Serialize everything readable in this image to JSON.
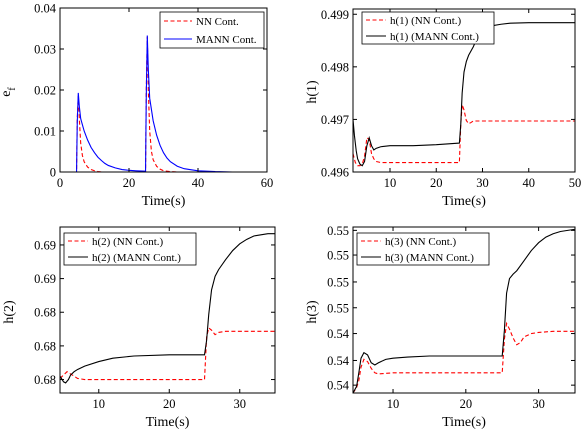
{
  "figure": {
    "layout": "2x2 grid"
  },
  "colors": {
    "nn": "#ff0000",
    "mann_ef": "#0000ff",
    "mann_h": "#000000",
    "axes": "#000000",
    "background": "#ffffff"
  },
  "chart_data": [
    {
      "type": "line",
      "title": "",
      "xlabel": "Time(s)",
      "ylabel": "e_f",
      "xlim": [
        0,
        60
      ],
      "ylim": [
        0,
        0.04
      ],
      "xticks": [
        0,
        20,
        40,
        60
      ],
      "xtick_labels": [
        "0",
        "20",
        "40",
        "60"
      ],
      "yticks": [
        0,
        0.01,
        0.02,
        0.03,
        0.04
      ],
      "ytick_labels": [
        "0",
        "0.01",
        "0.02",
        "0.03",
        "0.04"
      ],
      "grid": false,
      "legend": {
        "position": "top-right",
        "entries": [
          "NN Cont.",
          "MANN Cont."
        ]
      },
      "series": [
        {
          "name": "NN Cont.",
          "color": "#ff0000",
          "style": "dashed",
          "x": [
            0,
            4.8,
            5.0,
            5.3,
            5.6,
            6,
            6.5,
            7,
            8,
            9,
            10,
            11,
            12,
            14,
            24.8,
            25.0,
            25.3,
            25.6,
            26,
            26.5,
            27,
            28,
            29,
            30,
            32,
            34,
            50
          ],
          "y": [
            0,
            0,
            0.013,
            0.0185,
            0.013,
            0.007,
            0.004,
            0.0025,
            0.0012,
            0.0006,
            0.0003,
            0.0001,
            0,
            0,
            0,
            0.02,
            0.033,
            0.02,
            0.01,
            0.005,
            0.003,
            0.0014,
            0.0007,
            0.0003,
            0.0001,
            0,
            0
          ]
        },
        {
          "name": "MANN Cont.",
          "color": "#0000ff",
          "style": "solid",
          "x": [
            0,
            4.8,
            5.0,
            5.3,
            5.6,
            6,
            7,
            8,
            9,
            10,
            11,
            12,
            13,
            14,
            16,
            18,
            20,
            22,
            24.8,
            25.0,
            25.3,
            25.6,
            26,
            27,
            28,
            29,
            30,
            31,
            32,
            34,
            36,
            40,
            45,
            50
          ],
          "y": [
            0,
            0,
            0.012,
            0.0193,
            0.016,
            0.013,
            0.01,
            0.0078,
            0.006,
            0.0047,
            0.0036,
            0.0028,
            0.0021,
            0.0016,
            0.001,
            0.0006,
            0.0004,
            0.0003,
            0.0002,
            0.018,
            0.0333,
            0.025,
            0.018,
            0.0125,
            0.009,
            0.0065,
            0.0047,
            0.0034,
            0.0025,
            0.0014,
            0.0008,
            0.0003,
            0.0001,
            0
          ]
        }
      ]
    },
    {
      "type": "line",
      "title": "",
      "xlabel": "Time(s)",
      "ylabel": "h(1)",
      "xlim": [
        2,
        50
      ],
      "ylim": [
        0.496,
        0.4991
      ],
      "xticks": [
        10,
        20,
        30,
        40,
        50
      ],
      "xtick_labels": [
        "10",
        "20",
        "30",
        "40",
        "50"
      ],
      "yticks": [
        0.496,
        0.497,
        0.498,
        0.499
      ],
      "ytick_labels": [
        "0.496",
        "0.497",
        "0.498",
        "0.499"
      ],
      "grid": false,
      "legend": {
        "position": "top-left",
        "entries": [
          "h(1) (NN Cont.)",
          "h(1) (MANN Cont.)"
        ]
      },
      "series": [
        {
          "name": "h(1) (NN Cont.)",
          "color": "#ff0000",
          "style": "dashed",
          "x": [
            2,
            2.5,
            3,
            3.5,
            4,
            4.5,
            5,
            5.5,
            6,
            6.5,
            7,
            8,
            10,
            15,
            20,
            25,
            25.3,
            25.6,
            26,
            26.5,
            27,
            27.5,
            28,
            29,
            30,
            35,
            40,
            50
          ],
          "y": [
            0.49635,
            0.49618,
            0.49612,
            0.49612,
            0.49615,
            0.4963,
            0.49665,
            0.49662,
            0.49635,
            0.49625,
            0.4962,
            0.49618,
            0.49618,
            0.49618,
            0.49618,
            0.49618,
            0.4969,
            0.49728,
            0.49718,
            0.49698,
            0.49692,
            0.49694,
            0.49697,
            0.49697,
            0.49697,
            0.49697,
            0.49697,
            0.49697
          ]
        },
        {
          "name": "h(1) (MANN Cont.)",
          "color": "#000000",
          "style": "solid",
          "x": [
            2,
            2.3,
            2.7,
            3,
            3.5,
            4,
            4.5,
            5,
            5.5,
            6,
            6.5,
            7,
            8,
            10,
            15,
            20,
            25,
            25.3,
            25.6,
            26,
            26.5,
            27,
            28,
            29,
            30,
            31,
            32,
            34,
            36,
            40,
            45,
            50
          ],
          "y": [
            0.497,
            0.4967,
            0.4964,
            0.49625,
            0.49615,
            0.49612,
            0.4962,
            0.4965,
            0.49665,
            0.4965,
            0.49642,
            0.49645,
            0.49648,
            0.4965,
            0.4965,
            0.49652,
            0.49655,
            0.4969,
            0.4975,
            0.4979,
            0.4981,
            0.49822,
            0.49838,
            0.49858,
            0.49868,
            0.49875,
            0.49878,
            0.49881,
            0.49883,
            0.49884,
            0.49884,
            0.49884
          ]
        }
      ]
    },
    {
      "type": "line",
      "title": "",
      "xlabel": "Time(s)",
      "ylabel": "h(2)",
      "xlim": [
        4.5,
        35
      ],
      "ylim": [
        0.6768,
        0.6916
      ],
      "xticks": [
        10,
        20,
        30
      ],
      "xtick_labels": [
        "10",
        "20",
        "30"
      ],
      "yticks": [
        0.678,
        0.681,
        0.684,
        0.687,
        0.69
      ],
      "ytick_labels": [
        "0.68",
        "0.68",
        "0.68",
        "0.69",
        "0.69"
      ],
      "grid": false,
      "legend": {
        "position": "top-left",
        "entries": [
          "h(2) (NN Cont.)",
          "h(2) (MANN Cont.)"
        ]
      },
      "series": [
        {
          "name": "h(2) (NN Cont.)",
          "color": "#ff0000",
          "style": "dashed",
          "x": [
            4.5,
            5,
            5.5,
            6,
            6.5,
            7,
            8,
            10,
            15,
            20,
            25,
            25.3,
            25.6,
            26,
            26.5,
            27,
            28,
            30,
            35
          ],
          "y": [
            0.6781,
            0.6784,
            0.6787,
            0.6785,
            0.6783,
            0.6781,
            0.678,
            0.678,
            0.678,
            0.678,
            0.678,
            0.6818,
            0.6826,
            0.6824,
            0.682,
            0.6822,
            0.6823,
            0.6823,
            0.6823
          ]
        },
        {
          "name": "h(2) (MANN Cont.)",
          "color": "#000000",
          "style": "solid",
          "x": [
            4.5,
            5,
            5.3,
            5.7,
            6,
            6.5,
            7,
            8,
            10,
            12,
            15,
            20,
            25,
            25.3,
            25.6,
            26,
            26.5,
            27,
            28,
            29,
            30,
            31,
            32,
            33,
            34,
            35
          ],
          "y": [
            0.6783,
            0.6778,
            0.6777,
            0.678,
            0.6784,
            0.6787,
            0.6789,
            0.6792,
            0.6796,
            0.6799,
            0.6801,
            0.6802,
            0.6802,
            0.6815,
            0.6838,
            0.686,
            0.6872,
            0.6878,
            0.6887,
            0.6895,
            0.6901,
            0.6905,
            0.6908,
            0.6909,
            0.691,
            0.691
          ]
        }
      ]
    },
    {
      "type": "line",
      "title": "",
      "xlabel": "Time(s)",
      "ylabel": "h(3)",
      "xlim": [
        4.5,
        35
      ],
      "ylim": [
        0.5379,
        0.5527
      ],
      "xticks": [
        10,
        20,
        30
      ],
      "xtick_labels": [
        "10",
        "20",
        "30"
      ],
      "yticks": [
        0.5386,
        0.5408,
        0.5432,
        0.5455,
        0.5478,
        0.5502,
        0.5524
      ],
      "ytick_labels": [
        "0.54",
        "0.54",
        "0.54",
        "0.55",
        "0.55",
        "0.55",
        "0.55"
      ],
      "grid": false,
      "legend": {
        "position": "top-left",
        "entries": [
          "h(3) (NN Cont.)",
          "h(3) (MANN Cont.)"
        ]
      },
      "series": [
        {
          "name": "h(3) (NN Cont.)",
          "color": "#ff0000",
          "style": "dashed",
          "x": [
            4.5,
            5,
            5.3,
            5.6,
            6,
            6.5,
            7,
            7.5,
            8,
            10,
            15,
            20,
            25,
            25.3,
            25.6,
            26,
            26.5,
            27,
            27.5,
            28,
            29,
            30,
            32,
            35
          ],
          "y": [
            0.5379,
            0.5384,
            0.539,
            0.5402,
            0.5409,
            0.5407,
            0.5401,
            0.5397,
            0.5396,
            0.5397,
            0.5397,
            0.5397,
            0.5397,
            0.5427,
            0.5441,
            0.5436,
            0.5428,
            0.5422,
            0.5424,
            0.5429,
            0.5432,
            0.5433,
            0.5434,
            0.5434
          ]
        },
        {
          "name": "h(3) (MANN Cont.)",
          "color": "#000000",
          "style": "solid",
          "x": [
            4.5,
            5,
            5.3,
            5.6,
            6,
            6.5,
            7,
            7.5,
            8,
            9,
            10,
            12,
            15,
            20,
            25,
            25.3,
            25.6,
            26,
            26.5,
            27,
            28,
            29,
            30,
            31,
            32,
            33,
            34,
            35
          ],
          "y": [
            0.5379,
            0.5385,
            0.5397,
            0.541,
            0.5415,
            0.5413,
            0.5406,
            0.5404,
            0.5406,
            0.5409,
            0.541,
            0.5411,
            0.5412,
            0.5412,
            0.5412,
            0.5435,
            0.5468,
            0.5481,
            0.5485,
            0.5488,
            0.5497,
            0.5506,
            0.5513,
            0.5518,
            0.5521,
            0.5523,
            0.5524,
            0.5525
          ]
        }
      ]
    }
  ]
}
